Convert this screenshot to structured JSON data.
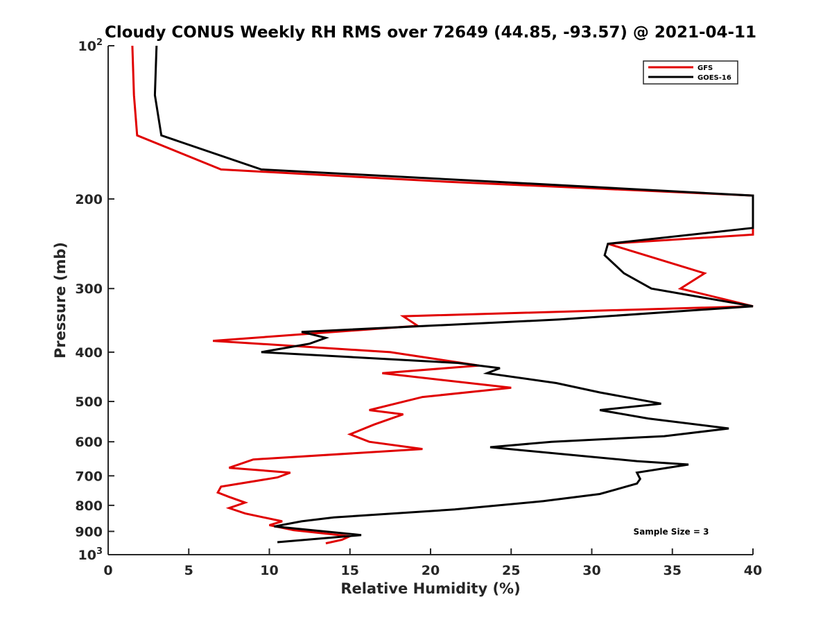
{
  "chart_data": {
    "type": "line",
    "title": "Cloudy CONUS Weekly RH RMS over 72649 (44.85, -93.57) @ 2021-04-11",
    "xlabel": "Relative Humidity (%)",
    "ylabel": "Pressure (mb)",
    "xlim": [
      0,
      40
    ],
    "ylim": [
      100,
      1000
    ],
    "y_scale": "log",
    "y_reversed": true,
    "grid": false,
    "legend_position": "top-right",
    "x_ticks": [
      "0",
      "5",
      "10",
      "15",
      "20",
      "25",
      "30",
      "35",
      "40"
    ],
    "y_ticks": [
      {
        "value": 100,
        "base": "10",
        "sup": "2"
      },
      {
        "value": 200,
        "base": "200",
        "sup": ""
      },
      {
        "value": 300,
        "base": "300",
        "sup": ""
      },
      {
        "value": 400,
        "base": "400",
        "sup": ""
      },
      {
        "value": 500,
        "base": "500",
        "sup": ""
      },
      {
        "value": 600,
        "base": "600",
        "sup": ""
      },
      {
        "value": 700,
        "base": "700",
        "sup": ""
      },
      {
        "value": 800,
        "base": "800",
        "sup": ""
      },
      {
        "value": 900,
        "base": "900",
        "sup": ""
      },
      {
        "value": 1000,
        "base": "10",
        "sup": "3"
      }
    ],
    "annotation": "Sample Size = 3",
    "series": [
      {
        "name": "GFS",
        "color": "#e00000",
        "points": [
          [
            1.5,
            100
          ],
          [
            1.6,
            125
          ],
          [
            1.8,
            150
          ],
          [
            7.0,
            175
          ],
          [
            21.0,
            185
          ],
          [
            40.0,
            197
          ],
          [
            40.0,
            235
          ],
          [
            31.0,
            245
          ],
          [
            37.0,
            280
          ],
          [
            35.5,
            300
          ],
          [
            40.0,
            325
          ],
          [
            18.3,
            340
          ],
          [
            19.2,
            355
          ],
          [
            6.5,
            380
          ],
          [
            17.5,
            400
          ],
          [
            23.0,
            425
          ],
          [
            17.0,
            440
          ],
          [
            25.0,
            470
          ],
          [
            19.5,
            490
          ],
          [
            16.2,
            520
          ],
          [
            18.3,
            530
          ],
          [
            16.5,
            555
          ],
          [
            15.0,
            580
          ],
          [
            16.2,
            600
          ],
          [
            19.5,
            620
          ],
          [
            9.0,
            650
          ],
          [
            7.5,
            675
          ],
          [
            11.3,
            690
          ],
          [
            10.5,
            705
          ],
          [
            7.0,
            735
          ],
          [
            6.8,
            755
          ],
          [
            7.5,
            770
          ],
          [
            8.5,
            790
          ],
          [
            7.5,
            810
          ],
          [
            8.5,
            830
          ],
          [
            10.8,
            860
          ],
          [
            10.0,
            875
          ],
          [
            11.5,
            895
          ],
          [
            15.0,
            920
          ],
          [
            14.5,
            935
          ],
          [
            13.5,
            950
          ]
        ]
      },
      {
        "name": "GOES-16",
        "color": "#000000",
        "points": [
          [
            3.0,
            100
          ],
          [
            2.9,
            125
          ],
          [
            3.3,
            150
          ],
          [
            9.5,
            175
          ],
          [
            24.0,
            185
          ],
          [
            40.0,
            197
          ],
          [
            40.0,
            228
          ],
          [
            31.0,
            245
          ],
          [
            30.8,
            258
          ],
          [
            32.0,
            280
          ],
          [
            33.7,
            300
          ],
          [
            40.0,
            325
          ],
          [
            28.0,
            345
          ],
          [
            12.0,
            365
          ],
          [
            13.5,
            375
          ],
          [
            12.5,
            385
          ],
          [
            9.5,
            400
          ],
          [
            21.7,
            420
          ],
          [
            24.3,
            430
          ],
          [
            23.5,
            440
          ],
          [
            27.8,
            460
          ],
          [
            30.5,
            480
          ],
          [
            34.3,
            505
          ],
          [
            30.5,
            520
          ],
          [
            33.5,
            540
          ],
          [
            38.5,
            565
          ],
          [
            34.5,
            585
          ],
          [
            27.5,
            600
          ],
          [
            23.7,
            615
          ],
          [
            32.8,
            655
          ],
          [
            36.0,
            665
          ],
          [
            32.8,
            690
          ],
          [
            33.0,
            710
          ],
          [
            32.8,
            725
          ],
          [
            30.5,
            760
          ],
          [
            27.0,
            785
          ],
          [
            21.5,
            815
          ],
          [
            14.0,
            845
          ],
          [
            12.0,
            860
          ],
          [
            10.3,
            880
          ],
          [
            15.7,
            915
          ],
          [
            10.5,
            945
          ]
        ]
      }
    ]
  }
}
